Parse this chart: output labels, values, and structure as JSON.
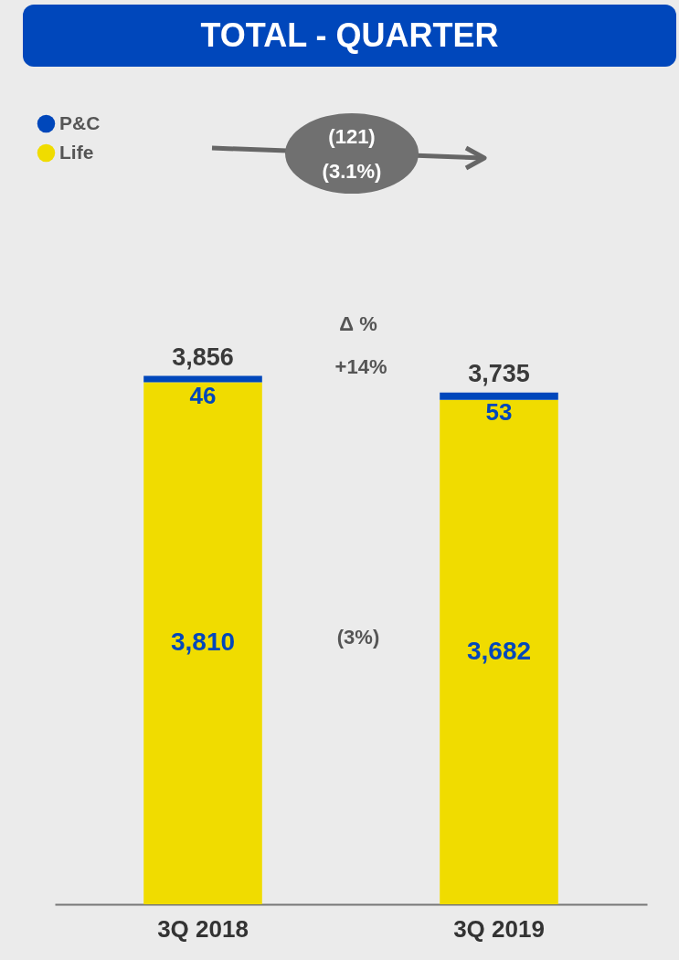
{
  "chart_data": {
    "type": "bar",
    "title": "TOTAL - QUARTER",
    "stacked": true,
    "legend": "top left",
    "categories": [
      "3Q 2018",
      "3Q 2019"
    ],
    "series": [
      {
        "name": "Life",
        "color": "#f0dc00",
        "values": [
          3810,
          3682
        ],
        "value_labels": [
          "3,810",
          "3,682"
        ]
      },
      {
        "name": "P&C",
        "color": "#0047bb",
        "values": [
          46,
          53
        ],
        "value_labels": [
          "46",
          "53"
        ]
      }
    ],
    "totals": [
      "3,856",
      "3,735"
    ],
    "annotations": [
      "(121)",
      "(3.1%)",
      "Δ %",
      "+14%",
      "(3%)"
    ]
  }
}
